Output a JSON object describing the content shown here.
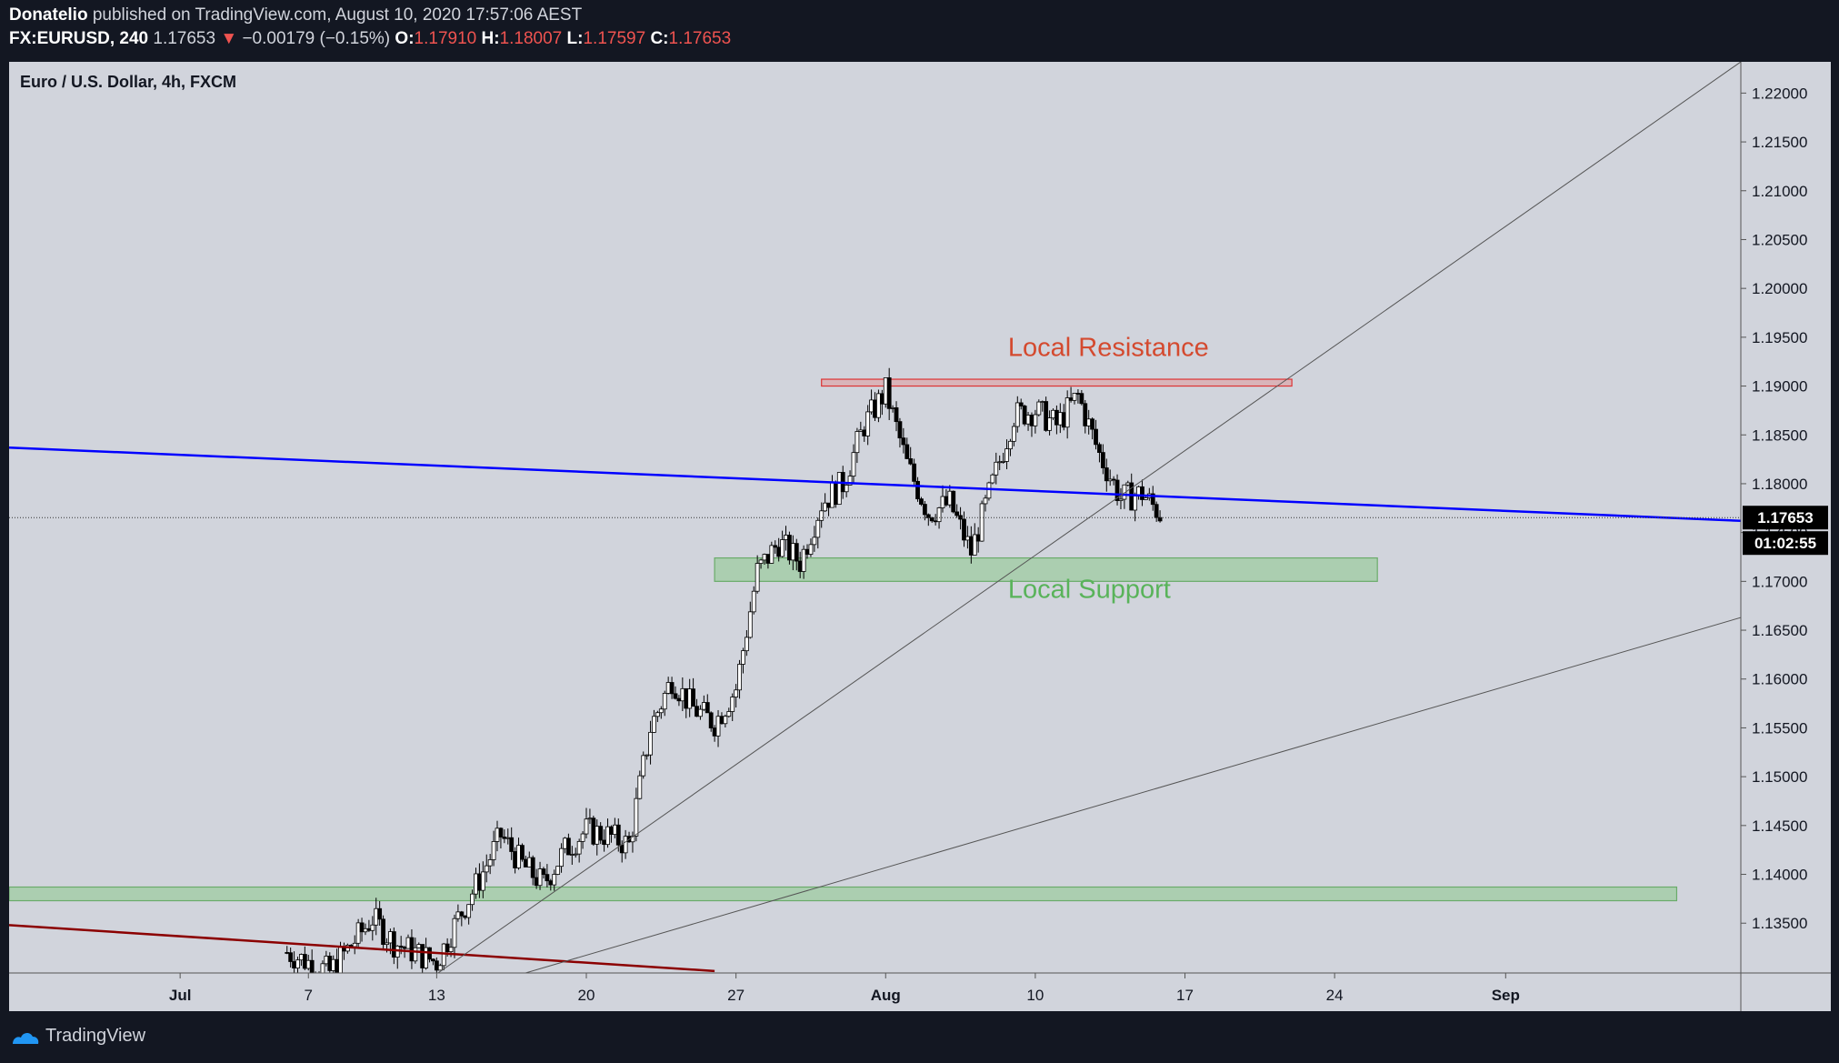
{
  "header": {
    "author": "Donatelio",
    "published": "published on TradingView.com, August 10, 2020 17:57:06 AEST",
    "symbol": "FX:EURUSD, 240",
    "last": "1.17653",
    "change": "−0.00179 (−0.15%)",
    "o_label": "O:",
    "o_value": "1.17910",
    "h_label": "H:",
    "h_value": "1.18007",
    "l_label": "L:",
    "l_value": "1.17597",
    "c_label": "C:",
    "c_value": "1.17653"
  },
  "footer": {
    "brand": "TradingView"
  },
  "colors": {
    "background": "#131722",
    "pane": "#d1d4dc",
    "blue_line": "#0000ff",
    "red_line": "#8b0000",
    "resistance": "#d44a2f",
    "support": "#59b35a"
  },
  "chart_data": {
    "type": "candlestick",
    "title": "Euro / U.S. Dollar, 4h, FXCM",
    "x_ticks": [
      "Jul",
      "7",
      "13",
      "20",
      "27",
      "Aug",
      "10",
      "17",
      "24",
      "Sep"
    ],
    "x_tick_dates": [
      "2020-07-01",
      "2020-07-07",
      "2020-07-13",
      "2020-07-20",
      "2020-07-27",
      "2020-08-03",
      "2020-08-10",
      "2020-08-17",
      "2020-08-24",
      "2020-09-01"
    ],
    "y_ticks": [
      "1.22000",
      "1.21500",
      "1.21000",
      "1.20500",
      "1.20000",
      "1.19500",
      "1.19000",
      "1.18500",
      "1.18000",
      "1.17500",
      "1.17000",
      "1.16500",
      "1.16000",
      "1.15500",
      "1.15000",
      "1.14500",
      "1.14000",
      "1.13500"
    ],
    "ylim": [
      1.1299,
      1.2232
    ],
    "xlim": [
      "2020-06-23",
      "2020-09-12"
    ],
    "last_price": "1.17653",
    "countdown": "01:02:55",
    "annotations": [
      {
        "text": "Local Resistance",
        "color": "#d44a2f"
      },
      {
        "text": "Local Support",
        "color": "#59b35a"
      }
    ],
    "zones": [
      {
        "name": "resistance",
        "y": [
          1.19,
          1.1907
        ],
        "x": [
          "2020-07-31",
          "2020-08-22"
        ]
      },
      {
        "name": "support",
        "y": [
          1.17,
          1.1724
        ],
        "x": [
          "2020-07-26",
          "2020-08-26"
        ]
      },
      {
        "name": "lower-support",
        "y": [
          1.1373,
          1.1387
        ],
        "x": [
          "2020-06-23",
          "2020-09-09"
        ]
      }
    ],
    "trendlines": [
      {
        "name": "blue-descending",
        "color": "#0000ff",
        "points": [
          [
            "2020-06-23",
            1.1837
          ],
          [
            "2020-09-12",
            1.1762
          ]
        ]
      },
      {
        "name": "red-descending",
        "color": "#8b0000",
        "points": [
          [
            "2020-06-23",
            1.1348
          ],
          [
            "2020-07-26",
            1.1301
          ]
        ]
      },
      {
        "name": "steep-ascending",
        "color": "#555555",
        "points": [
          [
            "2020-07-13",
            1.1298
          ],
          [
            "2020-09-12",
            1.2232
          ]
        ]
      },
      {
        "name": "shallow-ascending",
        "color": "#555555",
        "points": [
          [
            "2020-07-17",
            1.1298
          ],
          [
            "2020-09-12",
            1.1663
          ]
        ]
      }
    ],
    "path": [
      [
        "2020-07-06",
        1.132
      ],
      [
        "2020-07-07",
        1.131
      ],
      [
        "2020-07-08",
        1.13
      ],
      [
        "2020-07-10",
        1.1355
      ],
      [
        "2020-07-11",
        1.133
      ],
      [
        "2020-07-13",
        1.131
      ],
      [
        "2020-07-14",
        1.1355
      ],
      [
        "2020-07-15",
        1.1395
      ],
      [
        "2020-07-16",
        1.144
      ],
      [
        "2020-07-17",
        1.141
      ],
      [
        "2020-07-18",
        1.139
      ],
      [
        "2020-07-19",
        1.1425
      ],
      [
        "2020-07-20",
        1.1445
      ],
      [
        "2020-07-21",
        1.144
      ],
      [
        "2020-07-22",
        1.143
      ],
      [
        "2020-07-23",
        1.155
      ],
      [
        "2020-07-24",
        1.16
      ],
      [
        "2020-07-25",
        1.157
      ],
      [
        "2020-07-26",
        1.1555
      ],
      [
        "2020-07-27",
        1.159
      ],
      [
        "2020-07-28",
        1.171
      ],
      [
        "2020-07-29",
        1.174
      ],
      [
        "2020-07-30",
        1.172
      ],
      [
        "2020-07-31",
        1.178
      ],
      [
        "2020-08-01",
        1.18
      ],
      [
        "2020-08-02",
        1.186
      ],
      [
        "2020-08-03",
        1.1895
      ],
      [
        "2020-08-04",
        1.182
      ],
      [
        "2020-08-05",
        1.177
      ],
      [
        "2020-08-06",
        1.178
      ],
      [
        "2020-08-07",
        1.173
      ],
      [
        "2020-08-08",
        1.18
      ],
      [
        "2020-08-09",
        1.187
      ],
      [
        "2020-08-10",
        1.1875
      ],
      [
        "2020-08-11",
        1.186
      ],
      [
        "2020-08-12",
        1.189
      ],
      [
        "2020-08-13",
        1.183
      ],
      [
        "2020-08-14",
        1.1785
      ],
      [
        "2020-08-15",
        1.179
      ],
      [
        "2020-08-16",
        1.1765
      ]
    ]
  }
}
